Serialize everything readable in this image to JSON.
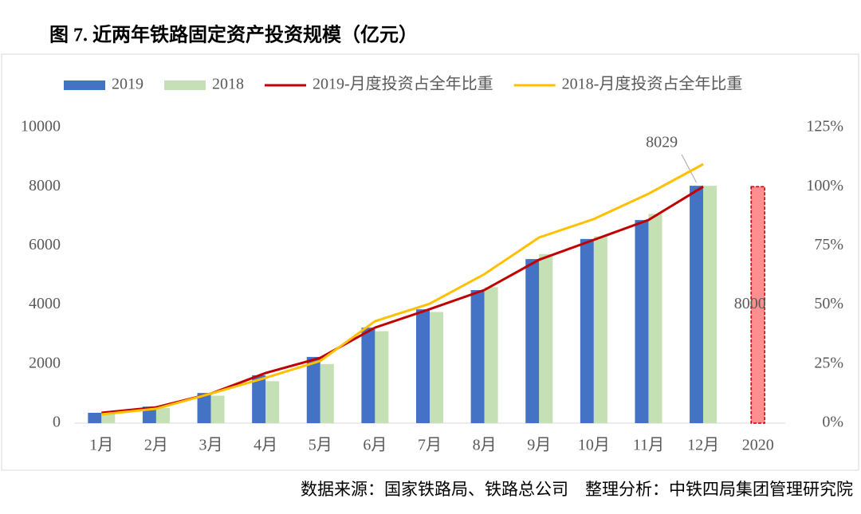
{
  "chart_data": {
    "type": "bar-line",
    "title": "图 7. 近两年铁路固定资产投资规模（亿元）",
    "source": "数据来源：国家铁路局、铁路总公司　整理分析：中铁四局集团管理研究院",
    "categories": [
      "1月",
      "2月",
      "3月",
      "4月",
      "5月",
      "6月",
      "7月",
      "8月",
      "9月",
      "10月",
      "11月",
      "12月",
      "2020"
    ],
    "ylim": [
      0,
      10000
    ],
    "yticks": [
      0,
      2000,
      4000,
      6000,
      8000,
      10000
    ],
    "y2lim": [
      0,
      125
    ],
    "y2ticks": [
      {
        "value": 0,
        "label": "0%"
      },
      {
        "value": 25,
        "label": "25%"
      },
      {
        "value": 50,
        "label": "50%"
      },
      {
        "value": 75,
        "label": "75%"
      },
      {
        "value": 100,
        "label": "100%"
      },
      {
        "value": 125,
        "label": "125%"
      }
    ],
    "series": [
      {
        "name": "2019",
        "type": "bar",
        "color": "#4472c4",
        "values": [
          350,
          560,
          1020,
          1620,
          2240,
          3230,
          3850,
          4500,
          5550,
          6230,
          6870,
          8029,
          null
        ],
        "labeled": [
          11
        ]
      },
      {
        "name": "2018",
        "type": "bar",
        "color": "#c5e0b4",
        "values": [
          330,
          510,
          930,
          1420,
          2000,
          3110,
          3760,
          4600,
          5720,
          6320,
          7080,
          8028,
          null
        ]
      },
      {
        "type": "bar",
        "color": "#ff8f8f",
        "border": "#c00000",
        "dashed": true,
        "values": [
          null,
          null,
          null,
          null,
          null,
          null,
          null,
          null,
          null,
          null,
          null,
          null,
          8000
        ],
        "labeled": [
          12
        ]
      },
      {
        "name": "2019-月度投资占全年比重",
        "type": "line",
        "axis": "y2",
        "color": "#c00000",
        "values": [
          4.4,
          6.7,
          12.5,
          21.2,
          27.6,
          40.4,
          48.2,
          56.3,
          69.1,
          77.5,
          85.9,
          100,
          null
        ]
      },
      {
        "name": "2018-月度投资占全年比重",
        "type": "line",
        "axis": "y2",
        "color": "#ffc000",
        "values": [
          3.7,
          6.1,
          12.5,
          19.2,
          26.3,
          43.1,
          50.5,
          63,
          78.5,
          86.3,
          97,
          109.5,
          null
        ]
      }
    ]
  }
}
